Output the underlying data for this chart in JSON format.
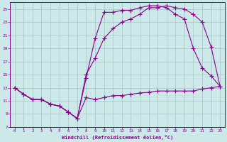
{
  "xlabel": "Windchill (Refroidissement éolien,°C)",
  "bg_color": "#cce8e8",
  "grid_color": "#aacccc",
  "line_color": "#880088",
  "line1_x": [
    0,
    1,
    2,
    3,
    4,
    5,
    6,
    7,
    8,
    9,
    10,
    11,
    12,
    13,
    14,
    15,
    16,
    17,
    18,
    19,
    20,
    21,
    22,
    23
  ],
  "line1_y": [
    13,
    12,
    11.2,
    11.2,
    10.5,
    10.2,
    9.3,
    8.3,
    11.5,
    11.2,
    11.5,
    11.8,
    11.8,
    12.0,
    12.2,
    12.3,
    12.5,
    12.5,
    12.5,
    12.5,
    12.5,
    12.8,
    13.0,
    13.2
  ],
  "line2_x": [
    0,
    1,
    2,
    3,
    4,
    5,
    6,
    7,
    8,
    9,
    10,
    11,
    12,
    13,
    14,
    15,
    16,
    17,
    18,
    19,
    20,
    21,
    22,
    23
  ],
  "line2_y": [
    13,
    12,
    11.2,
    11.2,
    10.5,
    10.2,
    9.3,
    8.3,
    14.5,
    20.5,
    24.5,
    24.5,
    24.8,
    24.8,
    25.2,
    25.5,
    25.5,
    25.2,
    24.2,
    23.5,
    19.0,
    16.0,
    14.8,
    13.2
  ],
  "line3_x": [
    0,
    1,
    2,
    3,
    4,
    5,
    6,
    7,
    8,
    9,
    10,
    11,
    12,
    13,
    14,
    15,
    16,
    17,
    18,
    19,
    20,
    21,
    22,
    23
  ],
  "line3_y": [
    13,
    12,
    11.2,
    11.2,
    10.5,
    10.2,
    9.3,
    8.3,
    15,
    17.5,
    20.5,
    22.0,
    23.0,
    23.5,
    24.2,
    25.2,
    25.2,
    25.5,
    25.2,
    25.0,
    24.2,
    23.0,
    19.2,
    13.2
  ],
  "xlim": [
    -0.5,
    23.5
  ],
  "ylim": [
    7,
    26
  ],
  "yticks": [
    7,
    9,
    11,
    13,
    15,
    17,
    19,
    21,
    23,
    25
  ],
  "xticks": [
    0,
    1,
    2,
    3,
    4,
    5,
    6,
    7,
    8,
    9,
    10,
    11,
    12,
    13,
    14,
    15,
    16,
    17,
    18,
    19,
    20,
    21,
    22,
    23
  ]
}
